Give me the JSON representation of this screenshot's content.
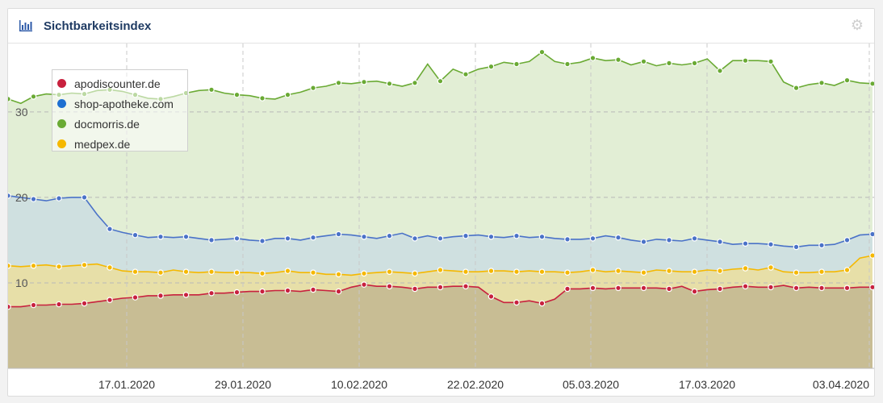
{
  "header": {
    "title": "Sichtbarkeitsindex",
    "icon": "bar-chart-icon",
    "settings_icon": "gear-icon"
  },
  "chart_data": {
    "type": "area",
    "title": "Sichtbarkeitsindex",
    "xlabel": "",
    "ylabel": "",
    "ylim": [
      0,
      38
    ],
    "yticks": [
      10,
      20,
      30
    ],
    "grid": true,
    "legend_position": "top-left",
    "xtick_labels": [
      "17.01.2020",
      "29.01.2020",
      "10.02.2020",
      "22.02.2020",
      "05.03.2020",
      "17.03.2020",
      "03.04.2020"
    ],
    "series": [
      {
        "name": "docmorris.de",
        "color": "#6aaa34",
        "fill": "#e2eed5",
        "values": [
          31.5,
          31.0,
          31.8,
          32.1,
          32.0,
          32.2,
          32.1,
          32.5,
          32.6,
          32.4,
          32.0,
          31.6,
          31.5,
          31.8,
          32.2,
          32.5,
          32.6,
          32.2,
          32.0,
          31.9,
          31.6,
          31.5,
          32.0,
          32.3,
          32.8,
          33.0,
          33.4,
          33.3,
          33.5,
          33.6,
          33.3,
          33.0,
          33.4,
          35.6,
          33.6,
          35.0,
          34.4,
          35.0,
          35.3,
          35.8,
          35.6,
          35.9,
          37.0,
          35.9,
          35.6,
          35.8,
          36.3,
          36.0,
          36.1,
          35.5,
          35.9,
          35.4,
          35.7,
          35.5,
          35.7,
          36.2,
          34.8,
          36.0,
          36.0,
          36.0,
          35.9,
          33.5,
          32.8,
          33.2,
          33.4,
          33.1,
          33.7,
          33.4,
          33.3
        ]
      },
      {
        "name": "shop-apotheke.com",
        "color": "#4a72c8",
        "fill": "#cfe0e0",
        "values": [
          20.2,
          20.0,
          19.8,
          19.6,
          19.9,
          20.0,
          20.0,
          18.0,
          16.3,
          15.9,
          15.6,
          15.3,
          15.4,
          15.3,
          15.4,
          15.2,
          15.0,
          15.1,
          15.2,
          15.0,
          14.9,
          15.2,
          15.2,
          15.0,
          15.3,
          15.5,
          15.7,
          15.6,
          15.4,
          15.2,
          15.5,
          15.8,
          15.2,
          15.5,
          15.2,
          15.4,
          15.5,
          15.6,
          15.4,
          15.3,
          15.5,
          15.3,
          15.4,
          15.2,
          15.1,
          15.1,
          15.2,
          15.5,
          15.3,
          15.0,
          14.8,
          15.1,
          15.0,
          14.9,
          15.2,
          15.0,
          14.8,
          14.5,
          14.6,
          14.6,
          14.5,
          14.3,
          14.2,
          14.4,
          14.4,
          14.5,
          15.0,
          15.6,
          15.7
        ]
      },
      {
        "name": "medpex.de",
        "color": "#f5b800",
        "fill": "#e7dfa8",
        "values": [
          12.0,
          11.9,
          12.0,
          12.1,
          11.9,
          12.0,
          12.1,
          12.2,
          11.8,
          11.4,
          11.3,
          11.3,
          11.2,
          11.5,
          11.3,
          11.2,
          11.3,
          11.2,
          11.2,
          11.2,
          11.1,
          11.2,
          11.4,
          11.2,
          11.2,
          11.0,
          11.0,
          10.9,
          11.1,
          11.2,
          11.3,
          11.2,
          11.1,
          11.3,
          11.5,
          11.4,
          11.3,
          11.3,
          11.4,
          11.4,
          11.3,
          11.4,
          11.3,
          11.3,
          11.2,
          11.3,
          11.5,
          11.3,
          11.4,
          11.3,
          11.2,
          11.5,
          11.4,
          11.3,
          11.3,
          11.5,
          11.4,
          11.6,
          11.7,
          11.5,
          11.8,
          11.3,
          11.2,
          11.2,
          11.3,
          11.3,
          11.5,
          12.9,
          13.2
        ]
      },
      {
        "name": "apodiscounter.de",
        "color": "#c8213e",
        "fill": "#c8bd94",
        "values": [
          7.2,
          7.2,
          7.4,
          7.4,
          7.5,
          7.5,
          7.6,
          7.8,
          8.0,
          8.2,
          8.3,
          8.5,
          8.5,
          8.6,
          8.6,
          8.6,
          8.8,
          8.8,
          8.9,
          9.0,
          9.0,
          9.1,
          9.1,
          9.0,
          9.2,
          9.1,
          9.0,
          9.5,
          9.8,
          9.6,
          9.6,
          9.5,
          9.3,
          9.5,
          9.5,
          9.6,
          9.6,
          9.5,
          8.4,
          7.7,
          7.7,
          7.9,
          7.6,
          8.1,
          9.3,
          9.3,
          9.4,
          9.3,
          9.4,
          9.4,
          9.4,
          9.4,
          9.3,
          9.6,
          9.0,
          9.2,
          9.3,
          9.5,
          9.6,
          9.5,
          9.5,
          9.7,
          9.4,
          9.5,
          9.4,
          9.4,
          9.4,
          9.5,
          9.5
        ]
      }
    ]
  }
}
